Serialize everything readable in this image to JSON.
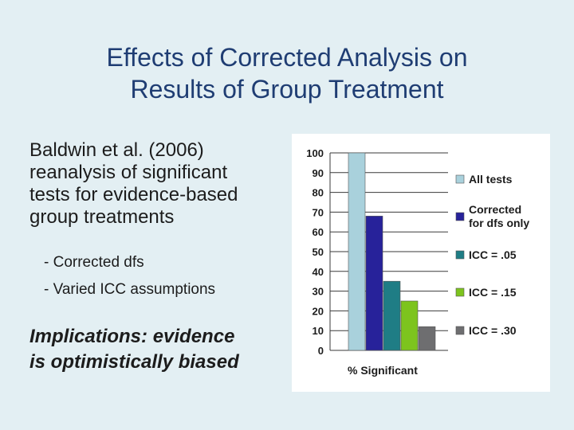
{
  "slide": {
    "title_line1": "Effects of Corrected Analysis on",
    "title_line2": "Results of Group Treatment",
    "body_lines": [
      "Baldwin et al. (2006)",
      "reanalysis of significant",
      "tests for evidence-based",
      "group treatments"
    ],
    "bullets": [
      "- Corrected dfs",
      "- Varied ICC assumptions"
    ],
    "implications_lines": [
      "Implications: evidence",
      "is optimistically biased"
    ]
  },
  "chart_data": {
    "type": "bar",
    "xlabel": "% Significant",
    "ylabel": "",
    "ylim": [
      0,
      100
    ],
    "yticks": [
      0,
      10,
      20,
      30,
      40,
      50,
      60,
      70,
      80,
      90,
      100
    ],
    "grid": true,
    "legend_position": "right",
    "series": [
      {
        "name": "All tests",
        "value": 100,
        "color": "#a9d1dc"
      },
      {
        "name": "Corrected for dfs only",
        "value": 68,
        "color": "#27229a"
      },
      {
        "name": "ICC = .05",
        "value": 35,
        "color": "#1f7d85"
      },
      {
        "name": "ICC = .15",
        "value": 25,
        "color": "#7dc41e"
      },
      {
        "name": "ICC = .30",
        "value": 12,
        "color": "#6e6e70"
      }
    ],
    "legend_labels": [
      [
        "All tests"
      ],
      [
        "Corrected",
        "for dfs only"
      ],
      [
        "ICC = .05"
      ],
      [
        "ICC = .15"
      ],
      [
        "ICC = .30"
      ]
    ]
  }
}
